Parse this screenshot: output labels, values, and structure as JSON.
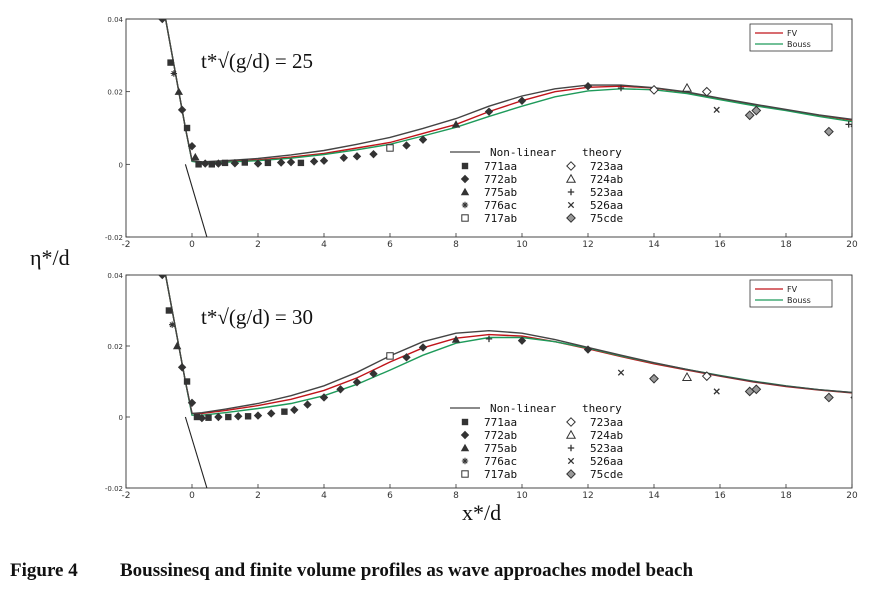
{
  "y_axis_label": "η*/d",
  "x_axis_label": "x*/d",
  "caption": {
    "number": "Figure 4",
    "text": "Boussinesq and finite volume profiles as wave approaches model beach"
  },
  "colors": {
    "fv": "#c0141a",
    "bouss": "#1e9a5a",
    "theory": "#444444",
    "markers": "#333333"
  },
  "chart_data": [
    {
      "type": "line",
      "annotation": "t*√(g/d) = 25",
      "xlim": [
        -2,
        20
      ],
      "ylim": [
        -0.02,
        0.04
      ],
      "x_ticks": [
        {
          "v": -2,
          "label": "-2"
        },
        {
          "v": 0,
          "label": "0"
        },
        {
          "v": 2,
          "label": "2"
        },
        {
          "v": 4,
          "label": "4"
        },
        {
          "v": 6,
          "label": "6"
        },
        {
          "v": 8,
          "label": "8"
        },
        {
          "v": 10,
          "label": "10"
        },
        {
          "v": 12,
          "label": "12"
        },
        {
          "v": 14,
          "label": "14"
        },
        {
          "v": 16,
          "label": "16"
        },
        {
          "v": 18,
          "label": "18"
        },
        {
          "v": 20,
          "label": "20"
        }
      ],
      "y_ticks": [
        {
          "v": -0.02,
          "label": "-0.02"
        },
        {
          "v": 0,
          "label": "0"
        },
        {
          "v": 0.02,
          "label": "0.02"
        },
        {
          "v": 0.04,
          "label": "0.04"
        }
      ],
      "legend_top": [
        "FV",
        "Bouss"
      ],
      "legend_bottom_title": [
        "Non-linear",
        "theory"
      ],
      "legend_bottom_items": [
        {
          "code": "771aa",
          "marker": "square"
        },
        {
          "code": "723aa",
          "marker": "open-diamond"
        },
        {
          "code": "772ab",
          "marker": "diamond"
        },
        {
          "code": "724ab",
          "marker": "open-triangle"
        },
        {
          "code": "775ab",
          "marker": "triangle"
        },
        {
          "code": "523aa",
          "marker": "plus"
        },
        {
          "code": "776ac",
          "marker": "star"
        },
        {
          "code": "526aa",
          "marker": "cross"
        },
        {
          "code": "717ab",
          "marker": "open-square"
        },
        {
          "code": "75cde",
          "marker": "dot-diamond"
        }
      ],
      "series": [
        {
          "name": "FV",
          "x": [
            -0.8,
            -0.5,
            -0.2,
            0,
            0.3,
            1,
            2,
            3,
            4,
            5,
            6,
            7,
            8,
            9,
            10,
            11,
            12,
            13,
            14,
            15,
            16,
            17,
            18,
            19,
            20
          ],
          "y": [
            0.04,
            0.025,
            0.01,
            0.001,
            0.0005,
            0.0008,
            0.0012,
            0.002,
            0.003,
            0.0045,
            0.006,
            0.0085,
            0.011,
            0.0145,
            0.0175,
            0.02,
            0.0212,
            0.0215,
            0.021,
            0.0198,
            0.018,
            0.0165,
            0.015,
            0.0135,
            0.0122
          ]
        },
        {
          "name": "Bouss",
          "x": [
            -0.8,
            -0.5,
            -0.2,
            0,
            0.3,
            1,
            2,
            3,
            4,
            5,
            6,
            7,
            8,
            9,
            10,
            11,
            12,
            13,
            14,
            15,
            16,
            17,
            18,
            19,
            20
          ],
          "y": [
            0.04,
            0.025,
            0.01,
            0.0008,
            0.0004,
            0.0006,
            0.001,
            0.0017,
            0.0027,
            0.004,
            0.0055,
            0.0078,
            0.0102,
            0.0132,
            0.016,
            0.0186,
            0.0202,
            0.0208,
            0.0205,
            0.0195,
            0.0178,
            0.0162,
            0.0148,
            0.0132,
            0.0118
          ]
        },
        {
          "name": "Non-linear theory",
          "x": [
            -0.8,
            -0.5,
            -0.2,
            0,
            0.3,
            1,
            2,
            3,
            4,
            5,
            6,
            7,
            8,
            9,
            10,
            11,
            12,
            13,
            14,
            15,
            16,
            17,
            18,
            19,
            20
          ],
          "y": [
            0.04,
            0.025,
            0.01,
            0.001,
            0.0007,
            0.001,
            0.0016,
            0.0026,
            0.0038,
            0.0055,
            0.0074,
            0.0099,
            0.0126,
            0.016,
            0.0188,
            0.0208,
            0.0218,
            0.0218,
            0.0211,
            0.0199,
            0.0182,
            0.0166,
            0.0151,
            0.0136,
            0.0124
          ]
        },
        {
          "name": "shoreline",
          "x": [
            -0.2,
            0.45
          ],
          "y": [
            0.0,
            -0.02
          ]
        }
      ],
      "points": [
        {
          "m": "diamond",
          "x": -0.9,
          "y": 0.04
        },
        {
          "m": "square",
          "x": -0.65,
          "y": 0.028
        },
        {
          "m": "star",
          "x": -0.55,
          "y": 0.025
        },
        {
          "m": "triangle",
          "x": -0.4,
          "y": 0.02
        },
        {
          "m": "diamond",
          "x": -0.3,
          "y": 0.015
        },
        {
          "m": "square",
          "x": -0.15,
          "y": 0.01
        },
        {
          "m": "diamond",
          "x": 0.0,
          "y": 0.005
        },
        {
          "m": "triangle",
          "x": 0.1,
          "y": 0.002
        },
        {
          "m": "square",
          "x": 0.2,
          "y": 0.0
        },
        {
          "m": "diamond",
          "x": 0.4,
          "y": 0.0002
        },
        {
          "m": "square",
          "x": 0.6,
          "y": 0.0
        },
        {
          "m": "diamond",
          "x": 0.8,
          "y": 0.0002
        },
        {
          "m": "square",
          "x": 1.0,
          "y": 0.0004
        },
        {
          "m": "diamond",
          "x": 1.3,
          "y": 0.0003
        },
        {
          "m": "square",
          "x": 1.6,
          "y": 0.0005
        },
        {
          "m": "diamond",
          "x": 2.0,
          "y": 0.0002
        },
        {
          "m": "square",
          "x": 2.3,
          "y": 0.0004
        },
        {
          "m": "diamond",
          "x": 2.7,
          "y": 0.0005
        },
        {
          "m": "diamond",
          "x": 3.0,
          "y": 0.0006
        },
        {
          "m": "square",
          "x": 3.3,
          "y": 0.0004
        },
        {
          "m": "diamond",
          "x": 3.7,
          "y": 0.0008
        },
        {
          "m": "diamond",
          "x": 4.0,
          "y": 0.001
        },
        {
          "m": "diamond",
          "x": 4.6,
          "y": 0.0018
        },
        {
          "m": "diamond",
          "x": 5.0,
          "y": 0.0022
        },
        {
          "m": "diamond",
          "x": 5.5,
          "y": 0.0028
        },
        {
          "m": "open-square",
          "x": 6.0,
          "y": 0.0045
        },
        {
          "m": "diamond",
          "x": 6.5,
          "y": 0.0052
        },
        {
          "m": "diamond",
          "x": 7.0,
          "y": 0.0068
        },
        {
          "m": "triangle",
          "x": 8.0,
          "y": 0.011
        },
        {
          "m": "diamond",
          "x": 9.0,
          "y": 0.0145
        },
        {
          "m": "diamond",
          "x": 10.0,
          "y": 0.0175
        },
        {
          "m": "diamond",
          "x": 12.0,
          "y": 0.0215
        },
        {
          "m": "plus",
          "x": 13.0,
          "y": 0.021
        },
        {
          "m": "open-diamond",
          "x": 14.0,
          "y": 0.0205
        },
        {
          "m": "open-triangle",
          "x": 15.0,
          "y": 0.021
        },
        {
          "m": "open-diamond",
          "x": 15.6,
          "y": 0.02
        },
        {
          "m": "cross",
          "x": 15.9,
          "y": 0.015
        },
        {
          "m": "dot-diamond",
          "x": 16.9,
          "y": 0.0135
        },
        {
          "m": "dot-diamond",
          "x": 17.1,
          "y": 0.0148
        },
        {
          "m": "dot-diamond",
          "x": 19.3,
          "y": 0.009
        },
        {
          "m": "dot-diamond",
          "x": 20.1,
          "y": 0.0105
        },
        {
          "m": "plus",
          "x": 19.9,
          "y": 0.011
        }
      ]
    },
    {
      "type": "line",
      "annotation": "t*√(g/d) = 30",
      "xlim": [
        -2,
        20
      ],
      "ylim": [
        -0.02,
        0.04
      ],
      "x_ticks": [
        {
          "v": -2,
          "label": "-2"
        },
        {
          "v": 0,
          "label": "0"
        },
        {
          "v": 2,
          "label": "2"
        },
        {
          "v": 4,
          "label": "4"
        },
        {
          "v": 6,
          "label": "6"
        },
        {
          "v": 8,
          "label": "8"
        },
        {
          "v": 10,
          "label": "10"
        },
        {
          "v": 12,
          "label": "12"
        },
        {
          "v": 14,
          "label": "14"
        },
        {
          "v": 16,
          "label": "16"
        },
        {
          "v": 18,
          "label": "18"
        },
        {
          "v": 20,
          "label": "20"
        }
      ],
      "y_ticks": [
        {
          "v": -0.02,
          "label": "-0.02"
        },
        {
          "v": 0,
          "label": "0"
        },
        {
          "v": 0.02,
          "label": "0.02"
        },
        {
          "v": 0.04,
          "label": "0.04"
        }
      ],
      "legend_top": [
        "FV",
        "Bouss"
      ],
      "legend_bottom_title": [
        "Non-linear",
        "theory"
      ],
      "legend_bottom_items": [
        {
          "code": "771aa",
          "marker": "square"
        },
        {
          "code": "723aa",
          "marker": "open-diamond"
        },
        {
          "code": "772ab",
          "marker": "diamond"
        },
        {
          "code": "724ab",
          "marker": "open-triangle"
        },
        {
          "code": "775ab",
          "marker": "triangle"
        },
        {
          "code": "523aa",
          "marker": "plus"
        },
        {
          "code": "776ac",
          "marker": "star"
        },
        {
          "code": "526aa",
          "marker": "cross"
        },
        {
          "code": "717ab",
          "marker": "open-square"
        },
        {
          "code": "75cde",
          "marker": "dot-diamond"
        }
      ],
      "series": [
        {
          "name": "FV",
          "x": [
            -0.8,
            -0.5,
            -0.2,
            0,
            0.3,
            1,
            2,
            3,
            4,
            5,
            6,
            7,
            8,
            9,
            10,
            11,
            12,
            13,
            14,
            15,
            16,
            17,
            18,
            19,
            20
          ],
          "y": [
            0.04,
            0.025,
            0.01,
            0.001,
            0.001,
            0.0018,
            0.0032,
            0.005,
            0.0075,
            0.011,
            0.0155,
            0.0195,
            0.0222,
            0.0232,
            0.0228,
            0.0212,
            0.0192,
            0.017,
            0.015,
            0.0132,
            0.0115,
            0.0099,
            0.0086,
            0.0076,
            0.0068
          ]
        },
        {
          "name": "Bouss",
          "x": [
            -0.8,
            -0.5,
            -0.2,
            0,
            0.3,
            1,
            2,
            3,
            4,
            5,
            6,
            7,
            8,
            9,
            10,
            11,
            12,
            13,
            14,
            15,
            16,
            17,
            18,
            19,
            20
          ],
          "y": [
            0.04,
            0.025,
            0.01,
            0.0005,
            0.0005,
            0.0012,
            0.0024,
            0.0038,
            0.006,
            0.0092,
            0.0132,
            0.0174,
            0.0208,
            0.0224,
            0.0224,
            0.0212,
            0.0194,
            0.0172,
            0.0152,
            0.0134,
            0.0117,
            0.0101,
            0.0088,
            0.0077,
            0.0069
          ]
        },
        {
          "name": "Non-linear theory",
          "x": [
            -0.8,
            -0.5,
            -0.2,
            0,
            0.3,
            1,
            2,
            3,
            4,
            5,
            6,
            7,
            8,
            9,
            10,
            11,
            12,
            13,
            14,
            15,
            16,
            17,
            18,
            19,
            20
          ],
          "y": [
            0.04,
            0.025,
            0.01,
            0.001,
            0.0012,
            0.0022,
            0.0038,
            0.006,
            0.0088,
            0.0126,
            0.0172,
            0.0212,
            0.0236,
            0.0243,
            0.0236,
            0.0218,
            0.0196,
            0.0174,
            0.0153,
            0.0134,
            0.0116,
            0.01,
            0.0087,
            0.0077,
            0.0069
          ]
        },
        {
          "name": "shoreline",
          "x": [
            -0.2,
            0.45
          ],
          "y": [
            0.0,
            -0.02
          ]
        }
      ],
      "points": [
        {
          "m": "diamond",
          "x": -0.9,
          "y": 0.04
        },
        {
          "m": "square",
          "x": -0.7,
          "y": 0.03
        },
        {
          "m": "star",
          "x": -0.6,
          "y": 0.026
        },
        {
          "m": "triangle",
          "x": -0.45,
          "y": 0.02
        },
        {
          "m": "diamond",
          "x": -0.3,
          "y": 0.014
        },
        {
          "m": "square",
          "x": -0.15,
          "y": 0.01
        },
        {
          "m": "diamond",
          "x": 0.0,
          "y": 0.004
        },
        {
          "m": "square",
          "x": 0.15,
          "y": 0.0
        },
        {
          "m": "diamond",
          "x": 0.3,
          "y": -0.0003
        },
        {
          "m": "square",
          "x": 0.5,
          "y": -0.0002
        },
        {
          "m": "diamond",
          "x": 0.8,
          "y": 0.0
        },
        {
          "m": "square",
          "x": 1.1,
          "y": 0.0
        },
        {
          "m": "diamond",
          "x": 1.4,
          "y": 0.0002
        },
        {
          "m": "square",
          "x": 1.7,
          "y": 0.0002
        },
        {
          "m": "diamond",
          "x": 2.0,
          "y": 0.0004
        },
        {
          "m": "diamond",
          "x": 2.4,
          "y": 0.001
        },
        {
          "m": "square",
          "x": 2.8,
          "y": 0.0015
        },
        {
          "m": "diamond",
          "x": 3.1,
          "y": 0.002
        },
        {
          "m": "diamond",
          "x": 3.5,
          "y": 0.0035
        },
        {
          "m": "diamond",
          "x": 4.0,
          "y": 0.0055
        },
        {
          "m": "diamond",
          "x": 4.5,
          "y": 0.0078
        },
        {
          "m": "diamond",
          "x": 5.0,
          "y": 0.0098
        },
        {
          "m": "diamond",
          "x": 5.5,
          "y": 0.0122
        },
        {
          "m": "open-square",
          "x": 6.0,
          "y": 0.0172
        },
        {
          "m": "diamond",
          "x": 6.5,
          "y": 0.0168
        },
        {
          "m": "diamond",
          "x": 7.0,
          "y": 0.0196
        },
        {
          "m": "triangle",
          "x": 8.0,
          "y": 0.0218
        },
        {
          "m": "plus",
          "x": 9.0,
          "y": 0.022
        },
        {
          "m": "diamond",
          "x": 10.0,
          "y": 0.0215
        },
        {
          "m": "diamond",
          "x": 12.0,
          "y": 0.019
        },
        {
          "m": "cross",
          "x": 13.0,
          "y": 0.0125
        },
        {
          "m": "dot-diamond",
          "x": 14.0,
          "y": 0.0108
        },
        {
          "m": "open-triangle",
          "x": 15.0,
          "y": 0.0112
        },
        {
          "m": "open-diamond",
          "x": 15.6,
          "y": 0.0115
        },
        {
          "m": "cross",
          "x": 15.9,
          "y": 0.0072
        },
        {
          "m": "dot-diamond",
          "x": 16.9,
          "y": 0.0072
        },
        {
          "m": "dot-diamond",
          "x": 17.1,
          "y": 0.0078
        },
        {
          "m": "dot-diamond",
          "x": 19.3,
          "y": 0.0055
        },
        {
          "m": "dot-diamond",
          "x": 20.1,
          "y": 0.0055
        }
      ]
    }
  ]
}
